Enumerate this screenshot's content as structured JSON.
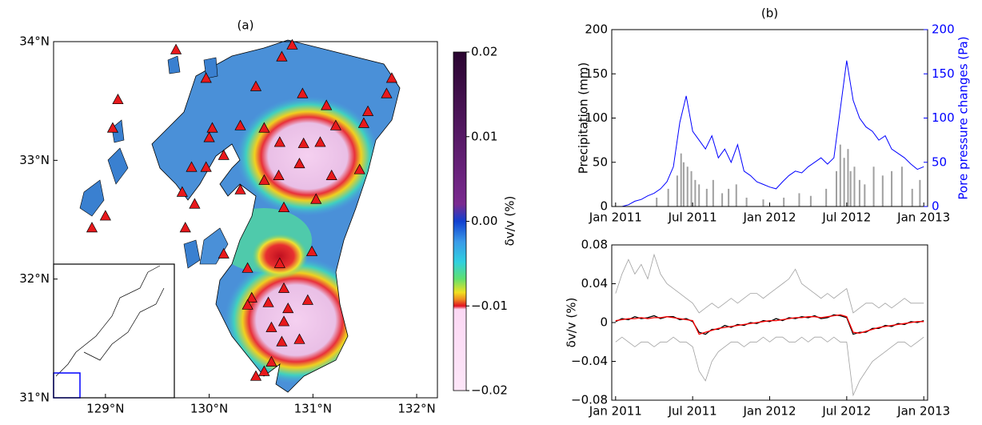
{
  "chart_data": [
    {
      "type": "map",
      "title": "(a)",
      "xlim": [
        128.5,
        132.2
      ],
      "ylim": [
        31,
        34
      ],
      "xticks": [
        {
          "value": 129,
          "label": "129°N"
        },
        {
          "value": 130,
          "label": "130°N"
        },
        {
          "value": 131,
          "label": "131°N"
        },
        {
          "value": 132,
          "label": "132°N"
        }
      ],
      "yticks": [
        {
          "value": 31,
          "label": "31°N"
        },
        {
          "value": 32,
          "label": "32°N"
        },
        {
          "value": 33,
          "label": "33°N"
        },
        {
          "value": 34,
          "label": "34°N"
        }
      ],
      "stations": {
        "color": "#e8191c",
        "x": [
          130.7,
          130.8,
          129.68,
          129.97,
          130.45,
          130.9,
          131.13,
          131.53,
          131.76,
          131.71,
          131.49,
          131.22,
          131.07,
          130.91,
          130.68,
          130.53,
          130.3,
          130.03,
          130.0,
          130.14,
          129.97,
          129.83,
          129.74,
          129.86,
          129.77,
          130.3,
          130.53,
          130.67,
          130.87,
          131.18,
          131.45,
          131.03,
          130.72,
          130.14,
          130.37,
          130.68,
          130.99,
          130.41,
          130.57,
          130.72,
          130.76,
          130.95,
          130.37,
          130.6,
          130.72,
          130.7,
          130.87,
          130.6,
          130.53,
          130.45,
          128.87,
          129.0,
          129.07,
          129.12
        ],
        "y": [
          33.87,
          33.97,
          33.93,
          33.69,
          33.62,
          33.56,
          33.46,
          33.41,
          33.69,
          33.56,
          33.31,
          33.29,
          33.15,
          33.14,
          33.15,
          33.27,
          33.29,
          33.27,
          33.19,
          33.04,
          32.94,
          32.94,
          32.73,
          32.63,
          32.43,
          32.75,
          32.83,
          32.87,
          32.97,
          32.87,
          32.92,
          32.67,
          32.6,
          32.21,
          32.09,
          32.13,
          32.23,
          31.84,
          31.8,
          31.92,
          31.75,
          31.82,
          31.78,
          31.59,
          31.64,
          31.47,
          31.49,
          31.3,
          31.22,
          31.18,
          32.43,
          32.53,
          33.27,
          33.51
        ]
      },
      "colorbar": {
        "label": "δv/v (%)",
        "lim": [
          -0.02,
          0.02
        ],
        "ticks": [
          0.02,
          0.01,
          {
            "value": 0,
            "label": "0.00"
          },
          {
            "value": -0.01,
            "label": "−0.01"
          },
          {
            "value": -0.02,
            "label": "−0.02"
          }
        ]
      }
    },
    {
      "type": "dual",
      "title": "(b)",
      "ylabel": "Precipitation (mm)",
      "y2label": "Pore pressure changes (Pa)",
      "xlim": [
        -0.3,
        24.3
      ],
      "xticks": [
        {
          "value": 0,
          "label": "Jan 2011"
        },
        {
          "value": 6,
          "label": "Jul 2011"
        },
        {
          "value": 12,
          "label": "Jan 2012"
        },
        {
          "value": 18,
          "label": "Jul 2012"
        },
        {
          "value": 24,
          "label": "Jan 2013"
        }
      ],
      "ylim": [
        0,
        200
      ],
      "yticks": [
        0,
        50,
        100,
        150,
        200
      ],
      "y2lim": [
        0,
        200
      ],
      "y2ticks": [
        0,
        50,
        100,
        150,
        200
      ],
      "y2color": "#0000ff",
      "series": [
        {
          "type": "bar",
          "color": "#a0a0a0",
          "x": [
            3.2,
            4.1,
            4.8,
            5.1,
            5.3,
            5.6,
            5.9,
            6.2,
            6.5,
            7.1,
            7.6,
            8.3,
            8.8,
            9.4,
            10.2,
            11.5,
            13.1,
            14.3,
            15.2,
            16.4,
            17.2,
            17.5,
            17.8,
            18.1,
            18.3,
            18.6,
            19.0,
            19.4,
            20.1,
            20.8,
            21.5,
            22.3,
            23.1,
            23.7
          ],
          "values": [
            10,
            20,
            35,
            60,
            50,
            45,
            40,
            30,
            25,
            20,
            30,
            15,
            20,
            25,
            10,
            8,
            10,
            15,
            12,
            20,
            40,
            70,
            55,
            65,
            40,
            45,
            30,
            25,
            45,
            35,
            40,
            45,
            20,
            30
          ]
        },
        {
          "type": "line",
          "axis": "y2",
          "color": "#0000ff",
          "x": [
            0,
            0.5,
            1,
            1.5,
            2,
            2.5,
            3,
            3.5,
            4,
            4.5,
            5,
            5.5,
            6,
            6.5,
            7,
            7.5,
            8,
            8.5,
            9,
            9.5,
            10,
            10.5,
            11,
            11.5,
            12,
            12.5,
            13,
            13.5,
            14,
            14.5,
            15,
            15.5,
            16,
            16.5,
            17,
            17.5,
            18,
            18.5,
            19,
            19.5,
            20,
            20.5,
            21,
            21.5,
            22,
            22.5,
            23,
            23.5,
            24
          ],
          "values": [
            0,
            0,
            2,
            6,
            8,
            12,
            15,
            20,
            28,
            45,
            95,
            125,
            85,
            75,
            65,
            80,
            55,
            65,
            50,
            70,
            40,
            35,
            28,
            25,
            22,
            20,
            28,
            35,
            40,
            38,
            45,
            50,
            55,
            48,
            55,
            110,
            165,
            120,
            100,
            90,
            85,
            75,
            80,
            65,
            60,
            55,
            48,
            42,
            45
          ]
        }
      ]
    },
    {
      "type": "line",
      "ylabel": "δv/v (%)",
      "xlim": [
        -0.3,
        24.3
      ],
      "xticks": [
        {
          "value": 0,
          "label": "Jan 2011"
        },
        {
          "value": 6,
          "label": "Jul 2011"
        },
        {
          "value": 12,
          "label": "Jan 2012"
        },
        {
          "value": 18,
          "label": "Jul 2012"
        },
        {
          "value": 24,
          "label": "Jan 2013"
        }
      ],
      "ylim": [
        -0.08,
        0.08
      ],
      "yticks": [
        {
          "value": -0.08,
          "label": "−0.08"
        },
        {
          "value": -0.04,
          "label": "−0.04"
        },
        0,
        0.04,
        0.08
      ],
      "x": [
        0,
        0.5,
        1,
        1.5,
        2,
        2.5,
        3,
        3.5,
        4,
        4.5,
        5,
        5.5,
        6,
        6.5,
        7,
        7.5,
        8,
        8.5,
        9,
        9.5,
        10,
        10.5,
        11,
        11.5,
        12,
        12.5,
        13,
        13.5,
        14,
        14.5,
        15,
        15.5,
        16,
        16.5,
        17,
        17.5,
        18,
        18.5,
        19,
        19.5,
        20,
        20.5,
        21,
        21.5,
        22,
        22.5,
        23,
        23.5,
        24
      ],
      "series": [
        {
          "color": "#a0a0a0",
          "values": [
            0.03,
            0.05,
            0.065,
            0.05,
            0.06,
            0.045,
            0.07,
            0.05,
            0.04,
            0.035,
            0.03,
            0.025,
            0.02,
            0.01,
            0.015,
            0.02,
            0.015,
            0.02,
            0.025,
            0.02,
            0.025,
            0.03,
            0.03,
            0.025,
            0.03,
            0.035,
            0.04,
            0.045,
            0.055,
            0.04,
            0.035,
            0.03,
            0.025,
            0.03,
            0.025,
            0.03,
            0.035,
            0.01,
            0.015,
            0.02,
            0.02,
            0.015,
            0.02,
            0.015,
            0.02,
            0.025,
            0.02,
            0.02,
            0.02
          ]
        },
        {
          "color": "#a0a0a0",
          "values": [
            -0.02,
            -0.015,
            -0.02,
            -0.025,
            -0.02,
            -0.02,
            -0.025,
            -0.02,
            -0.02,
            -0.015,
            -0.02,
            -0.02,
            -0.025,
            -0.05,
            -0.06,
            -0.04,
            -0.03,
            -0.025,
            -0.02,
            -0.02,
            -0.025,
            -0.02,
            -0.02,
            -0.015,
            -0.02,
            -0.015,
            -0.015,
            -0.02,
            -0.02,
            -0.015,
            -0.02,
            -0.015,
            -0.015,
            -0.02,
            -0.015,
            -0.02,
            -0.02,
            -0.075,
            -0.06,
            -0.05,
            -0.04,
            -0.035,
            -0.03,
            -0.025,
            -0.02,
            -0.02,
            -0.025,
            -0.02,
            -0.015
          ]
        },
        {
          "color": "#000000",
          "values": [
            0.001,
            0.004,
            0.003,
            0.006,
            0.004,
            0.005,
            0.007,
            0.004,
            0.006,
            0.006,
            0.003,
            0.004,
            0.001,
            -0.01,
            -0.012,
            -0.007,
            -0.007,
            -0.003,
            -0.005,
            -0.002,
            -0.003,
            0,
            -0.001,
            0.002,
            0.001,
            0.004,
            0.002,
            0.005,
            0.004,
            0.006,
            0.005,
            0.007,
            0.004,
            0.005,
            0.008,
            0.007,
            0.005,
            -0.012,
            -0.01,
            -0.01,
            -0.006,
            -0.006,
            -0.003,
            -0.004,
            -0.001,
            -0.002,
            0.001,
            0,
            0.002
          ]
        },
        {
          "color": "#ff0000",
          "values": [
            0.002,
            0.003,
            0.004,
            0.004,
            0.005,
            0.004,
            0.005,
            0.005,
            0.006,
            0.005,
            0.004,
            0.003,
            0.002,
            -0.012,
            -0.01,
            -0.008,
            -0.006,
            -0.005,
            -0.004,
            -0.003,
            -0.002,
            -0.001,
            0,
            0.001,
            0.002,
            0.002,
            0.003,
            0.004,
            0.005,
            0.005,
            0.006,
            0.006,
            0.005,
            0.006,
            0.007,
            0.008,
            0.006,
            -0.01,
            -0.011,
            -0.009,
            -0.007,
            -0.005,
            -0.004,
            -0.003,
            -0.002,
            -0.001,
            0,
            0.001,
            0.001
          ]
        }
      ]
    }
  ]
}
